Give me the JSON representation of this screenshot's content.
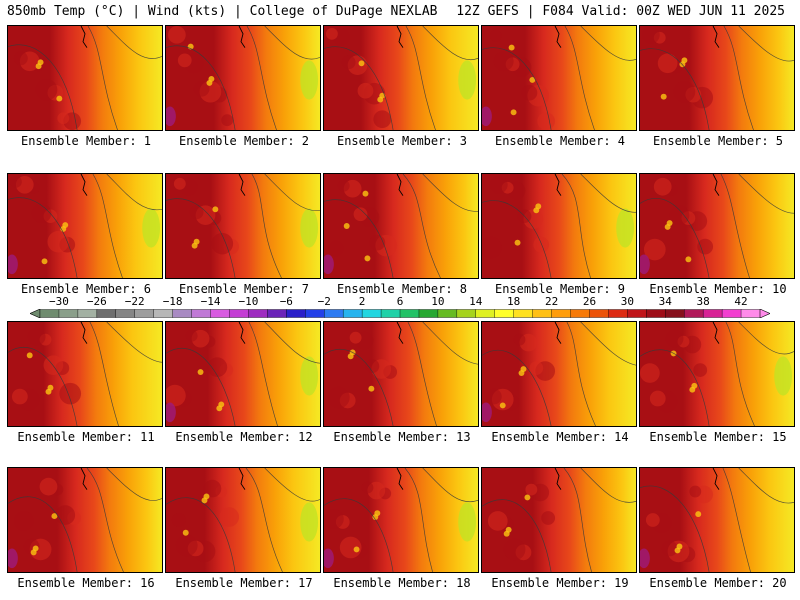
{
  "header": {
    "left_title": "850mb Temp (°C) | Wind (kts) | College of DuPage NEXLAB",
    "right_title": "12Z GEFS | F084 Valid: 00Z WED JUN 11 2025"
  },
  "panel_label_prefix": "Ensemble Member: ",
  "members": [
    {
      "id": 1,
      "label": "Ensemble Member: 1"
    },
    {
      "id": 2,
      "label": "Ensemble Member: 2"
    },
    {
      "id": 3,
      "label": "Ensemble Member: 3"
    },
    {
      "id": 4,
      "label": "Ensemble Member: 4"
    },
    {
      "id": 5,
      "label": "Ensemble Member: 5"
    },
    {
      "id": 6,
      "label": "Ensemble Member: 6"
    },
    {
      "id": 7,
      "label": "Ensemble Member: 7"
    },
    {
      "id": 8,
      "label": "Ensemble Member: 8"
    },
    {
      "id": 9,
      "label": "Ensemble Member: 9"
    },
    {
      "id": 10,
      "label": "Ensemble Member: 10"
    },
    {
      "id": 11,
      "label": "Ensemble Member: 11"
    },
    {
      "id": 12,
      "label": "Ensemble Member: 12"
    },
    {
      "id": 13,
      "label": "Ensemble Member: 13"
    },
    {
      "id": 14,
      "label": "Ensemble Member: 14"
    },
    {
      "id": 15,
      "label": "Ensemble Member: 15"
    },
    {
      "id": 16,
      "label": "Ensemble Member: 16"
    },
    {
      "id": 17,
      "label": "Ensemble Member: 17"
    },
    {
      "id": 18,
      "label": "Ensemble Member: 18"
    },
    {
      "id": 19,
      "label": "Ensemble Member: 19"
    },
    {
      "id": 20,
      "label": "Ensemble Member: 20"
    }
  ],
  "colorbar": {
    "min": -32,
    "max": 44,
    "step": 2,
    "tick_labels": [
      "−30",
      "−26",
      "−22",
      "−18",
      "−14",
      "−10",
      "−6",
      "−2",
      "2",
      "6",
      "10",
      "14",
      "18",
      "22",
      "26",
      "30",
      "34",
      "38",
      "42"
    ],
    "colors": [
      "#6f8c6f",
      "#8a9f8a",
      "#a3b1a3",
      "#6e6e6e",
      "#858585",
      "#9d9d9d",
      "#b7b7b7",
      "#a88ac2",
      "#c079d6",
      "#d85be0",
      "#c43dd4",
      "#9e2bc0",
      "#6a23b8",
      "#2a1fc9",
      "#2340e8",
      "#2d7bf2",
      "#27b4ee",
      "#22d6e0",
      "#1fd1a8",
      "#22c266",
      "#27a832",
      "#66bb22",
      "#a6d31d",
      "#dff021",
      "#ffff2a",
      "#ffe11f",
      "#ffc014",
      "#ff9d0c",
      "#f77a08",
      "#ec5309",
      "#dd2a12",
      "#c01419",
      "#9e0d18",
      "#86101d",
      "#b1195a",
      "#d82296",
      "#f33fd0",
      "#ff8be9"
    ]
  },
  "map_palette": {
    "dark": "#a80f14",
    "red": "#d7291e",
    "red_orange": "#e8481a",
    "orange": "#f37a0e",
    "amber": "#f9a108",
    "gold": "#fbc611",
    "yellow": "#f5e924",
    "lime": "#bfe324",
    "purple": "#9e1a7a",
    "contour": "#3a3a3a"
  }
}
